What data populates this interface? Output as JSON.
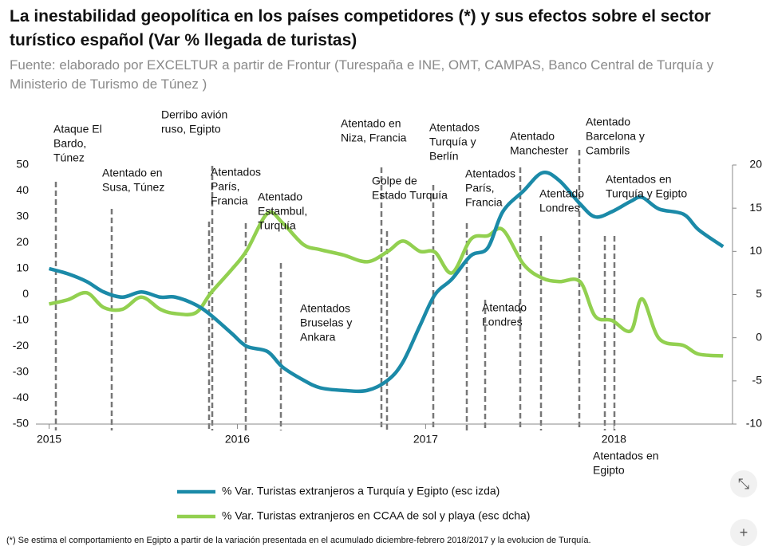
{
  "chart_data": {
    "type": "line",
    "title": "La inestabilidad geopolítica en los países competidores (*) y sus efectos sobre el sector turístico español (Var % llegada de turistas)",
    "subtitle": "Fuente: elaborado por EXCELTUR a partir de Frontur (Turespaña e INE, OMT, CAMPAS, Banco Central de Turquía y Ministerio de Turismo de Túnez )",
    "footnote": "(*) Se estima el comportamiento en Egipto a partir de la variación presentada en el acumulado diciembre-febrero 2018/2017 y la evolucion de Turquía.",
    "x": [
      2015.0,
      2015.1,
      2015.2,
      2015.29,
      2015.39,
      2015.49,
      2015.59,
      2015.67,
      2015.78,
      2015.86,
      2015.97,
      2016.05,
      2016.16,
      2016.24,
      2016.35,
      2016.44,
      2016.56,
      2016.69,
      2016.8,
      2016.88,
      2016.97,
      2017.05,
      2017.14,
      2017.24,
      2017.33,
      2017.41,
      2017.52,
      2017.62,
      2017.71,
      2017.82,
      2017.9,
      2017.99,
      2018.09,
      2018.15,
      2018.24,
      2018.37,
      2018.45,
      2018.58
    ],
    "xlim": [
      2014.93,
      2018.63
    ],
    "xticks": [
      2015,
      2016,
      2017,
      2018
    ],
    "ylim": [
      -50,
      50
    ],
    "yticks": [
      -50,
      -40,
      -30,
      -20,
      -10,
      0,
      10,
      20,
      30,
      40,
      50
    ],
    "y2lim": [
      -10,
      20
    ],
    "y2ticks": [
      -10,
      -5,
      0,
      5,
      10,
      15,
      20
    ],
    "series": [
      {
        "name": "% Var. Turistas extranjeros a Turquía y Egipto (esc izda)",
        "color": "#1b8aa8",
        "values": [
          10,
          8,
          5,
          1,
          -1,
          1,
          -1,
          -1,
          -4,
          -8,
          -15,
          -20,
          -22,
          -28,
          -33,
          -36,
          -37,
          -37,
          -33,
          -26,
          -12,
          0,
          6,
          15,
          18,
          32,
          40,
          47,
          44,
          35,
          30,
          32,
          36,
          37.5,
          33,
          31,
          25,
          18.5
        ]
      },
      {
        "name": "% Var. Turistas extranjeros en CCAA de sol y playa (esc dcha)",
        "color": "#92d050",
        "axis": "y2",
        "values": [
          3.9,
          4.4,
          5.2,
          3.5,
          3.3,
          4.7,
          3.3,
          2.8,
          2.9,
          5.2,
          7.9,
          10.1,
          14.4,
          13.3,
          10.8,
          10.2,
          9.6,
          8.8,
          10.0,
          11.2,
          10.0,
          9.9,
          7.5,
          11.4,
          11.8,
          12.5,
          8.5,
          6.9,
          6.5,
          6.5,
          2.5,
          2.0,
          0.8,
          4.5,
          -0.1,
          -0.9,
          -1.9,
          -2.1
        ]
      }
    ],
    "annotations": [
      [
        "Ataque El",
        "Bardo,",
        "Túnez"
      ],
      [
        "Atentado en",
        "Susa, Túnez"
      ],
      [
        "Derribo avión",
        "ruso, Egipto"
      ],
      [
        "Atentados",
        "París,",
        "Francia"
      ],
      [
        "Atentado",
        "Estambul,",
        "Turquía"
      ],
      [
        "Atentados",
        "Bruselas y",
        "Ankara"
      ],
      [
        "Atentado en",
        "Niza, Francia"
      ],
      [
        "Golpe de",
        "Estado Turquía"
      ],
      [
        "Atentados",
        "Turquía y",
        "Berlín"
      ],
      [
        "Atentados",
        "París,",
        "Francia"
      ],
      [
        "Atentado",
        "Londres"
      ],
      [
        "Atentado",
        "Manchester"
      ],
      [
        "Atentado",
        "Londres"
      ],
      [
        "Atentado",
        "Barcelona y",
        "Cambrils"
      ],
      [
        "Atentados en",
        "Turquía y Egipto"
      ],
      [
        "Atentados en",
        "Egipto"
      ]
    ]
  }
}
